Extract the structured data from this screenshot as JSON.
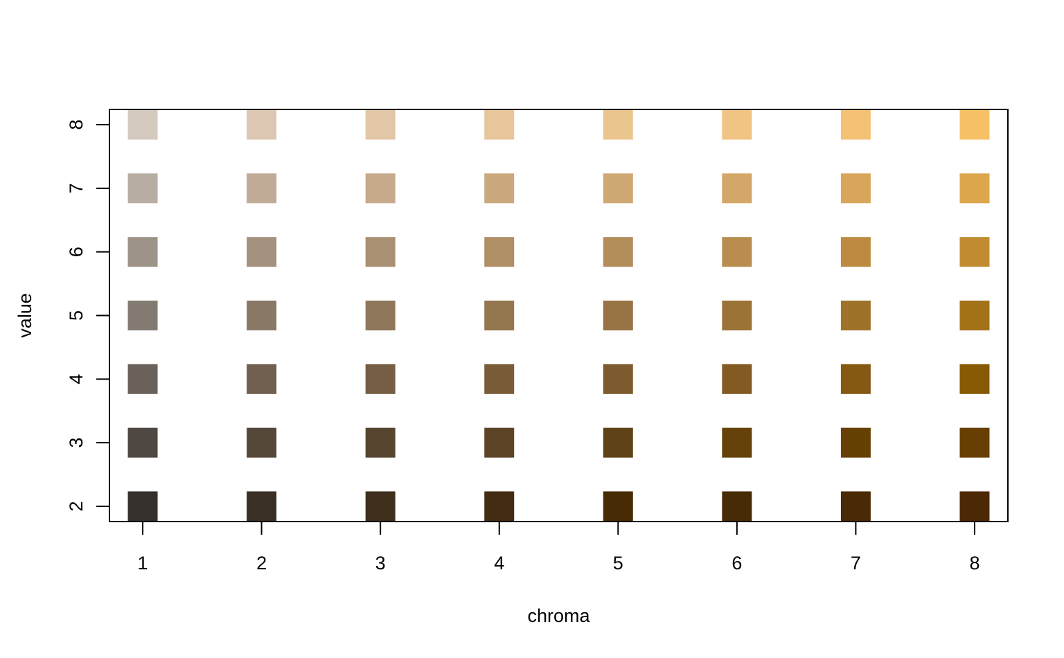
{
  "chart_data": {
    "type": "heatmap",
    "title": "",
    "xlabel": "chroma",
    "ylabel": "value",
    "x": [
      1,
      2,
      3,
      4,
      5,
      6,
      7,
      8
    ],
    "y": [
      2,
      3,
      4,
      5,
      6,
      7,
      8
    ],
    "xlim": [
      0.72,
      8.28
    ],
    "ylim": [
      1.76,
      8.24
    ],
    "grid": false,
    "legend": "none",
    "colors": [
      [
        "#35302c",
        "#3a2f24",
        "#3e2e1b",
        "#432c12",
        "#472b05",
        "#472a06",
        "#492906",
        "#4d2806"
      ],
      [
        "#4e4742",
        "#55473a",
        "#574530",
        "#5d4426",
        "#604218",
        "#654209",
        "#663f03",
        "#683f03"
      ],
      [
        "#6a615a",
        "#715f50",
        "#765e44",
        "#7b5c39",
        "#7e5b2e",
        "#825a22",
        "#855913",
        "#875a03"
      ],
      [
        "#837a72",
        "#8a7867",
        "#8f775b",
        "#94764f",
        "#987444",
        "#9b7337",
        "#9e7229",
        "#a37218"
      ],
      [
        "#9d9389",
        "#a4917d",
        "#a99072",
        "#ae8f66",
        "#b38e5a",
        "#b88d4e",
        "#bc8b41",
        "#c08b31"
      ],
      [
        "#b8ada3",
        "#bfab96",
        "#c6aa8b",
        "#caa97f",
        "#cfa873",
        "#d3a767",
        "#d8a65a",
        "#dca64c"
      ],
      [
        "#d5cabf",
        "#dcc8b2",
        "#e1c7a6",
        "#e6c69a",
        "#eac58d",
        "#f0c482",
        "#f4c275",
        "#f6c066"
      ]
    ]
  }
}
